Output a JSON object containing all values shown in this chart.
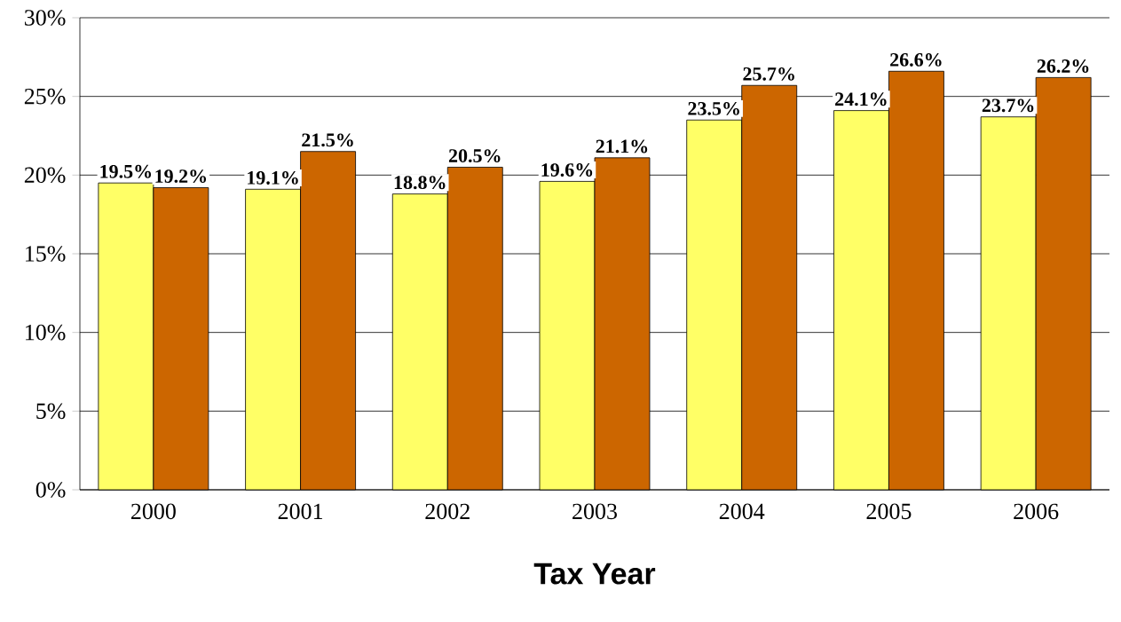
{
  "chart_data": {
    "type": "bar",
    "xlabel": "Tax Year",
    "categories": [
      "2000",
      "2001",
      "2002",
      "2003",
      "2004",
      "2005",
      "2006"
    ],
    "series": [
      {
        "color": "#ffff66",
        "values": [
          19.5,
          19.1,
          18.8,
          19.6,
          23.5,
          24.1,
          23.7
        ],
        "value_labels": [
          "19.5%",
          "19.1%",
          "18.8%",
          "19.6%",
          "23.5%",
          "24.1%",
          "23.7%"
        ]
      },
      {
        "color": "#cc6600",
        "values": [
          19.2,
          21.5,
          20.5,
          21.1,
          25.7,
          26.6,
          26.2
        ],
        "value_labels": [
          "19.2%",
          "21.5%",
          "20.5%",
          "21.1%",
          "25.7%",
          "26.6%",
          "26.2%"
        ]
      }
    ],
    "ylim": [
      0,
      30
    ],
    "yticks": [
      {
        "value": 0,
        "label": "0%"
      },
      {
        "value": 5,
        "label": "5%"
      },
      {
        "value": 10,
        "label": "10%"
      },
      {
        "value": 15,
        "label": "15%"
      },
      {
        "value": 20,
        "label": "20%"
      },
      {
        "value": 25,
        "label": "25%"
      },
      {
        "value": 30,
        "label": "30%"
      }
    ],
    "grid": "y"
  }
}
